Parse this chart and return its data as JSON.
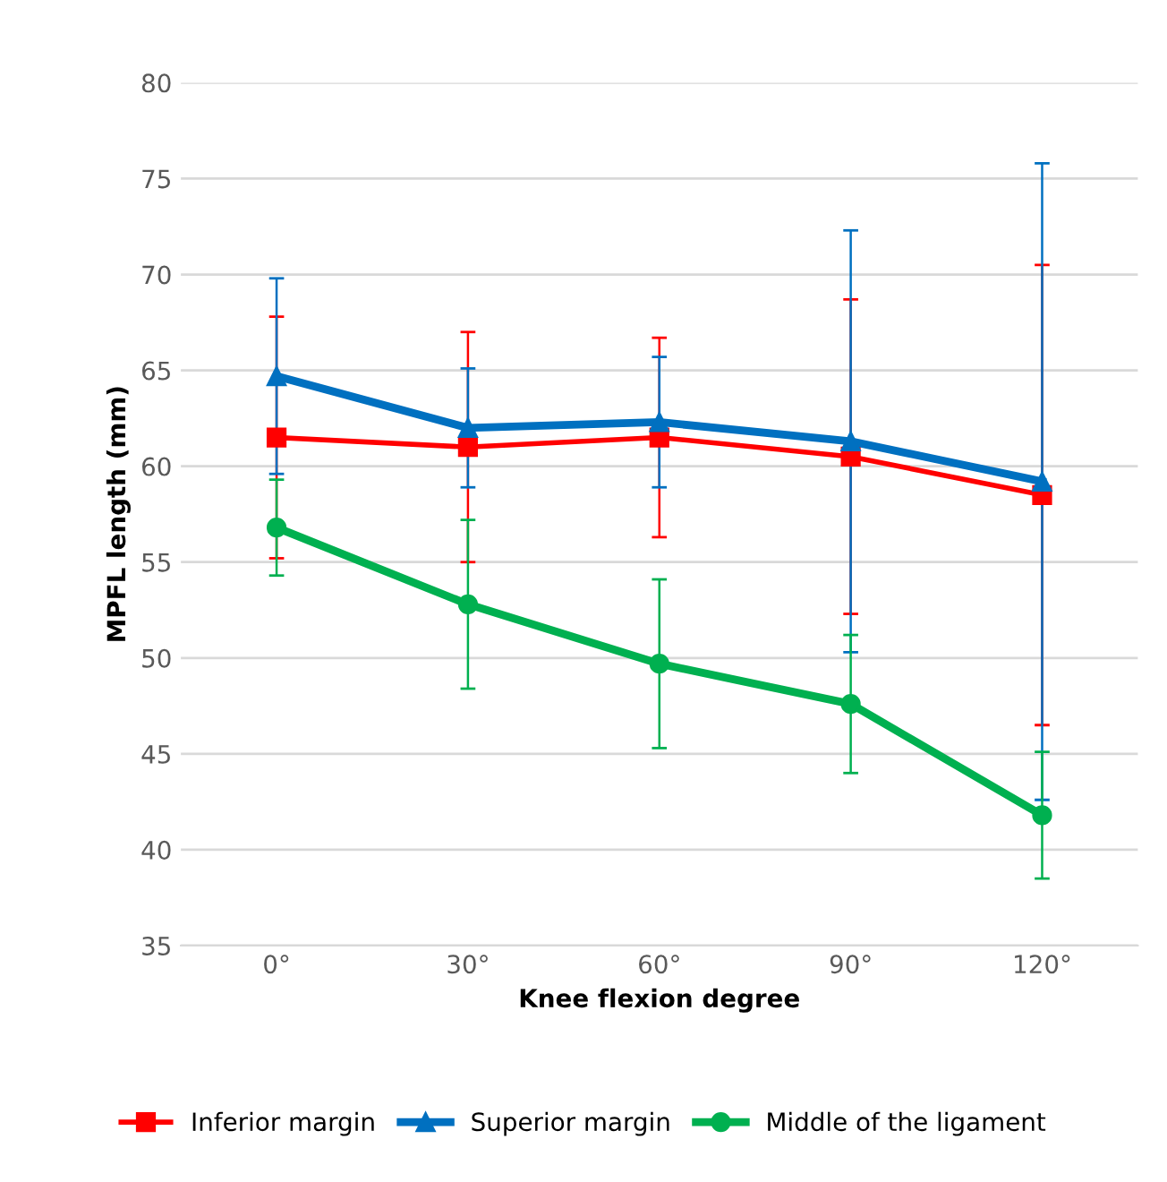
{
  "chart_data": {
    "type": "line",
    "xlabel": "Knee flexion degree",
    "ylabel": "MPFL length (mm)",
    "categories": [
      "0°",
      "30°",
      "60°",
      "90°",
      "120°"
    ],
    "series": [
      {
        "name": "Inferior margin",
        "color": "#ff0000",
        "marker": "square",
        "values": [
          61.5,
          61.0,
          61.5,
          60.5,
          58.5
        ],
        "errors": [
          6.3,
          6.0,
          5.2,
          8.2,
          12.0
        ]
      },
      {
        "name": "Superior margin",
        "color": "#0070c0",
        "marker": "triangle",
        "values": [
          64.7,
          62.0,
          62.3,
          61.3,
          59.2
        ],
        "errors": [
          5.1,
          3.1,
          3.4,
          11.0,
          16.6
        ]
      },
      {
        "name": "Middle of the ligament",
        "color": "#00b050",
        "marker": "circle",
        "values": [
          56.8,
          52.8,
          49.7,
          47.6,
          41.8
        ],
        "errors": [
          2.5,
          4.4,
          4.4,
          3.6,
          3.3
        ]
      }
    ],
    "ylim": [
      35,
      80
    ],
    "yticks": [
      35,
      40,
      45,
      50,
      55,
      60,
      65,
      70,
      75,
      80
    ],
    "grid": "y",
    "legend": "bottom"
  }
}
